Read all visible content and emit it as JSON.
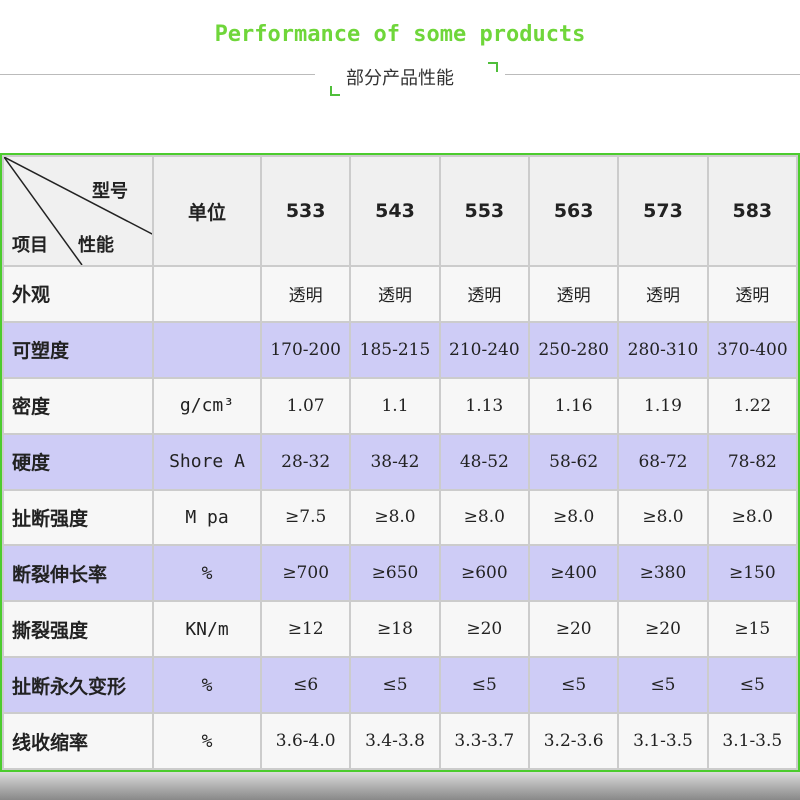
{
  "header": {
    "title": "Performance of some products",
    "subtitle": "部分产品性能"
  },
  "table": {
    "corner": {
      "model": "型号",
      "property": "性能",
      "item": "项目"
    },
    "unit_header": "单位",
    "models": [
      "533",
      "543",
      "553",
      "563",
      "573",
      "583"
    ],
    "rows": [
      [
        "外观",
        null,
        "透明",
        "透明",
        "透明",
        "透明",
        "透明",
        "透明"
      ],
      [
        "可塑度",
        null,
        "170-200",
        "185-215",
        "210-240",
        "250-280",
        "280-310",
        "370-400"
      ],
      [
        "密度",
        "g/cm³",
        "1.07",
        "1.1",
        "1.13",
        "1.16",
        "1.19",
        "1.22"
      ],
      [
        "硬度",
        "Shore A",
        "28-32",
        "38-42",
        "48-52",
        "58-62",
        "68-72",
        "78-82"
      ],
      [
        "扯断强度",
        "M pa",
        "≥7.5",
        "≥8.0",
        "≥8.0",
        "≥8.0",
        "≥8.0",
        "≥8.0"
      ],
      [
        "断裂伸长率",
        "%",
        "≥700",
        "≥650",
        "≥600",
        "≥400",
        "≥380",
        "≥150"
      ],
      [
        "撕裂强度",
        "KN/m",
        "≥12",
        "≥18",
        "≥20",
        "≥20",
        "≥20",
        "≥15"
      ],
      [
        "扯断永久变形",
        "%",
        "≤6",
        "≤5",
        "≤5",
        "≤5",
        "≤5",
        "≤5"
      ],
      [
        "线收缩率",
        "%",
        "3.6-4.0",
        "3.4-3.8",
        "3.3-3.7",
        "3.2-3.6",
        "3.1-3.5",
        "3.1-3.5"
      ]
    ]
  }
}
